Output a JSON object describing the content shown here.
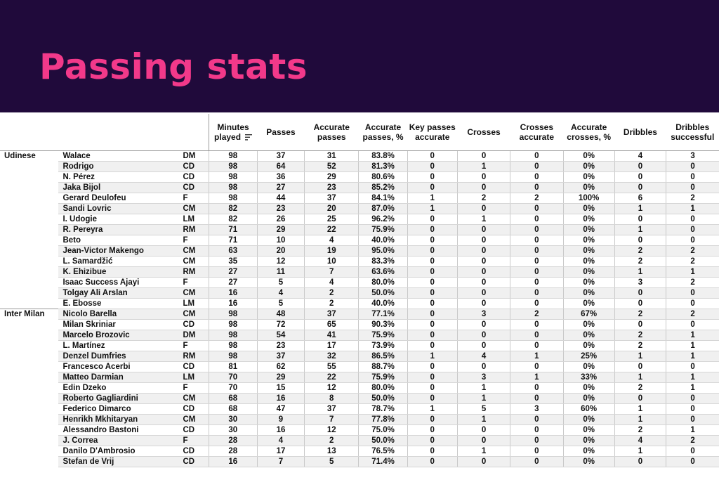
{
  "title": "Passing stats",
  "columns": [
    "Minutes played",
    "Passes",
    "Accurate passes",
    "Accurate passes, %",
    "Key passes accurate",
    "Crosses",
    "Crosses accurate",
    "Accurate crosses, %",
    "Dribbles",
    "Dribbles successful"
  ],
  "teams": [
    {
      "name": "Udinese",
      "players": [
        [
          "Walace",
          "DM",
          "98",
          "37",
          "31",
          "83.8%",
          "0",
          "0",
          "0",
          "0%",
          "4",
          "3"
        ],
        [
          "Rodrigo",
          "CD",
          "98",
          "64",
          "52",
          "81.3%",
          "0",
          "1",
          "0",
          "0%",
          "0",
          "0"
        ],
        [
          "N. Pérez",
          "CD",
          "98",
          "36",
          "29",
          "80.6%",
          "0",
          "0",
          "0",
          "0%",
          "0",
          "0"
        ],
        [
          "Jaka Bijol",
          "CD",
          "98",
          "27",
          "23",
          "85.2%",
          "0",
          "0",
          "0",
          "0%",
          "0",
          "0"
        ],
        [
          "Gerard Deulofeu",
          "F",
          "98",
          "44",
          "37",
          "84.1%",
          "1",
          "2",
          "2",
          "100%",
          "6",
          "2"
        ],
        [
          "Sandi Lovric",
          "CM",
          "82",
          "23",
          "20",
          "87.0%",
          "1",
          "0",
          "0",
          "0%",
          "1",
          "1"
        ],
        [
          "I. Udogie",
          "LM",
          "82",
          "26",
          "25",
          "96.2%",
          "0",
          "1",
          "0",
          "0%",
          "0",
          "0"
        ],
        [
          "R. Pereyra",
          "RM",
          "71",
          "29",
          "22",
          "75.9%",
          "0",
          "0",
          "0",
          "0%",
          "1",
          "0"
        ],
        [
          "Beto",
          "F",
          "71",
          "10",
          "4",
          "40.0%",
          "0",
          "0",
          "0",
          "0%",
          "0",
          "0"
        ],
        [
          "Jean-Victor Makengo",
          "CM",
          "63",
          "20",
          "19",
          "95.0%",
          "0",
          "0",
          "0",
          "0%",
          "2",
          "2"
        ],
        [
          "L. Samardžić",
          "CM",
          "35",
          "12",
          "10",
          "83.3%",
          "0",
          "0",
          "0",
          "0%",
          "2",
          "2"
        ],
        [
          "K. Ehizibue",
          "RM",
          "27",
          "11",
          "7",
          "63.6%",
          "0",
          "0",
          "0",
          "0%",
          "1",
          "1"
        ],
        [
          "Isaac Success Ajayi",
          "F",
          "27",
          "5",
          "4",
          "80.0%",
          "0",
          "0",
          "0",
          "0%",
          "3",
          "2"
        ],
        [
          "Tolgay Ali Arslan",
          "CM",
          "16",
          "4",
          "2",
          "50.0%",
          "0",
          "0",
          "0",
          "0%",
          "0",
          "0"
        ],
        [
          "E. Ebosse",
          "LM",
          "16",
          "5",
          "2",
          "40.0%",
          "0",
          "0",
          "0",
          "0%",
          "0",
          "0"
        ]
      ]
    },
    {
      "name": "Inter Milan",
      "players": [
        [
          "Nicolo Barella",
          "CM",
          "98",
          "48",
          "37",
          "77.1%",
          "0",
          "3",
          "2",
          "67%",
          "2",
          "2"
        ],
        [
          "Milan Skriniar",
          "CD",
          "98",
          "72",
          "65",
          "90.3%",
          "0",
          "0",
          "0",
          "0%",
          "0",
          "0"
        ],
        [
          "Marcelo Brozovic",
          "DM",
          "98",
          "54",
          "41",
          "75.9%",
          "0",
          "0",
          "0",
          "0%",
          "2",
          "1"
        ],
        [
          "L. Martínez",
          "F",
          "98",
          "23",
          "17",
          "73.9%",
          "0",
          "0",
          "0",
          "0%",
          "2",
          "1"
        ],
        [
          "Denzel Dumfries",
          "RM",
          "98",
          "37",
          "32",
          "86.5%",
          "1",
          "4",
          "1",
          "25%",
          "1",
          "1"
        ],
        [
          "Francesco Acerbi",
          "CD",
          "81",
          "62",
          "55",
          "88.7%",
          "0",
          "0",
          "0",
          "0%",
          "0",
          "0"
        ],
        [
          "Matteo Darmian",
          "LM",
          "70",
          "29",
          "22",
          "75.9%",
          "0",
          "3",
          "1",
          "33%",
          "1",
          "1"
        ],
        [
          "Edin Dzeko",
          "F",
          "70",
          "15",
          "12",
          "80.0%",
          "0",
          "1",
          "0",
          "0%",
          "2",
          "1"
        ],
        [
          "Roberto Gagliardini",
          "CM",
          "68",
          "16",
          "8",
          "50.0%",
          "0",
          "1",
          "0",
          "0%",
          "0",
          "0"
        ],
        [
          "Federico Dimarco",
          "CD",
          "68",
          "47",
          "37",
          "78.7%",
          "1",
          "5",
          "3",
          "60%",
          "1",
          "0"
        ],
        [
          "Henrikh Mkhitaryan",
          "CM",
          "30",
          "9",
          "7",
          "77.8%",
          "0",
          "1",
          "0",
          "0%",
          "1",
          "0"
        ],
        [
          "Alessandro Bastoni",
          "CD",
          "30",
          "16",
          "12",
          "75.0%",
          "0",
          "0",
          "0",
          "0%",
          "2",
          "1"
        ],
        [
          "J. Correa",
          "F",
          "28",
          "4",
          "2",
          "50.0%",
          "0",
          "0",
          "0",
          "0%",
          "4",
          "2"
        ],
        [
          "Danilo D'Ambrosio",
          "CD",
          "28",
          "17",
          "13",
          "76.5%",
          "0",
          "1",
          "0",
          "0%",
          "1",
          "0"
        ],
        [
          "Stefan de Vrij",
          "CD",
          "16",
          "7",
          "5",
          "71.4%",
          "0",
          "0",
          "0",
          "0%",
          "0",
          "0"
        ]
      ]
    }
  ]
}
